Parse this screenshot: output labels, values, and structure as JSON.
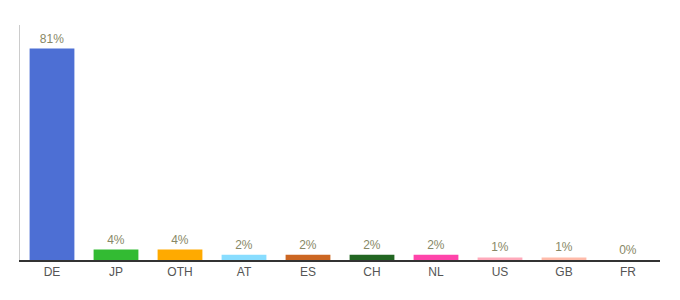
{
  "chart_data": {
    "type": "bar",
    "categories": [
      "DE",
      "JP",
      "OTH",
      "AT",
      "ES",
      "CH",
      "NL",
      "US",
      "GB",
      "FR"
    ],
    "values": [
      81,
      4,
      4,
      2,
      2,
      2,
      2,
      1,
      1,
      0
    ],
    "value_labels": [
      "81%",
      "4%",
      "4%",
      "2%",
      "2%",
      "2%",
      "2%",
      "1%",
      "1%",
      "0%"
    ],
    "colors": [
      "#4d6fd4",
      "#33bb33",
      "#ffaa00",
      "#88ddff",
      "#cc6622",
      "#226622",
      "#ff44aa",
      "#ffaabb",
      "#ffbbaa",
      "#bbbbff"
    ],
    "ylim": [
      0,
      90
    ],
    "tick_labels": "x",
    "grid": false
  }
}
